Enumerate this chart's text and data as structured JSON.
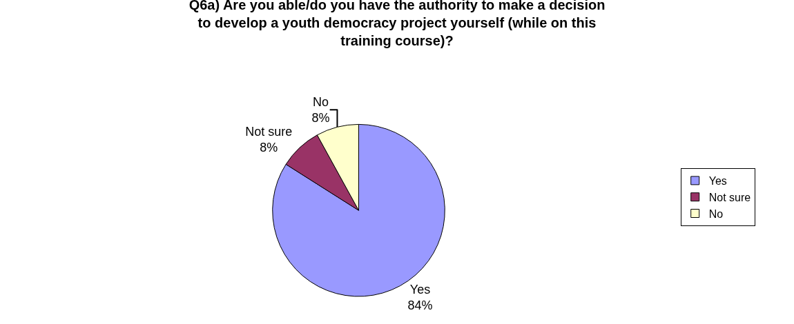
{
  "chart_data": {
    "type": "pie",
    "title": "Q6a) Are you able/do you have the authority to make a decision to develop a youth democracy project yourself (while on this training course)?",
    "categories": [
      "Yes",
      "Not sure",
      "No"
    ],
    "values": [
      84,
      8,
      8
    ],
    "value_labels": [
      "84%",
      "8%",
      "8%"
    ],
    "colors": [
      "#9999ff",
      "#993366",
      "#ffffcc"
    ],
    "legend": "right"
  }
}
